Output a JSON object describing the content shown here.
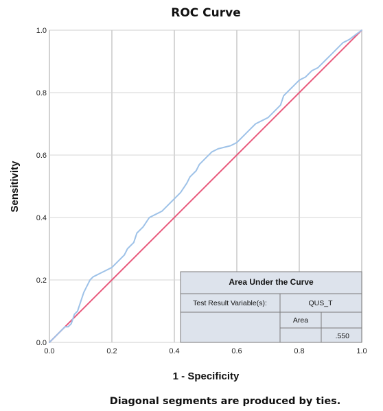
{
  "chart_data": {
    "type": "line",
    "title": "ROC Curve",
    "xlabel": "1 - Specificity",
    "ylabel": "Sensitivity",
    "xlim": [
      0,
      1
    ],
    "ylim": [
      0,
      1
    ],
    "xticks": [
      "0.0",
      "0.2",
      "0.4",
      "0.6",
      "0.8",
      "1.0"
    ],
    "yticks": [
      "0.0",
      "0.2",
      "0.4",
      "0.6",
      "0.8",
      "1.0"
    ],
    "grid": true,
    "series": [
      {
        "color": "#9ec2e8",
        "x": [
          0.0,
          0.01,
          0.02,
          0.03,
          0.04,
          0.05,
          0.06,
          0.07,
          0.08,
          0.09,
          0.1,
          0.11,
          0.12,
          0.13,
          0.14,
          0.15,
          0.16,
          0.18,
          0.2,
          0.22,
          0.24,
          0.25,
          0.27,
          0.28,
          0.3,
          0.32,
          0.34,
          0.36,
          0.38,
          0.39,
          0.4,
          0.42,
          0.44,
          0.45,
          0.47,
          0.48,
          0.5,
          0.52,
          0.54,
          0.56,
          0.58,
          0.6,
          0.62,
          0.64,
          0.66,
          0.68,
          0.7,
          0.72,
          0.74,
          0.75,
          0.76,
          0.78,
          0.8,
          0.82,
          0.84,
          0.86,
          0.88,
          0.9,
          0.92,
          0.94,
          0.96,
          0.98,
          1.0
        ],
        "y": [
          0.0,
          0.01,
          0.02,
          0.03,
          0.04,
          0.05,
          0.05,
          0.06,
          0.09,
          0.1,
          0.13,
          0.16,
          0.18,
          0.2,
          0.21,
          0.215,
          0.22,
          0.23,
          0.24,
          0.26,
          0.28,
          0.3,
          0.32,
          0.35,
          0.37,
          0.4,
          0.41,
          0.42,
          0.44,
          0.45,
          0.46,
          0.48,
          0.51,
          0.53,
          0.55,
          0.57,
          0.59,
          0.61,
          0.62,
          0.625,
          0.63,
          0.64,
          0.66,
          0.68,
          0.7,
          0.71,
          0.72,
          0.74,
          0.76,
          0.79,
          0.8,
          0.82,
          0.84,
          0.85,
          0.87,
          0.88,
          0.9,
          0.92,
          0.94,
          0.96,
          0.97,
          0.985,
          1.0
        ]
      },
      {
        "color": "#e8577a",
        "x": [
          0,
          1
        ],
        "y": [
          0,
          1
        ]
      }
    ],
    "auc_table": {
      "title": "Area Under the Curve",
      "variable_label": "Test Result Variable(s):",
      "variable_value": "QUS_T",
      "column_header": "Area",
      "area_value": ".550"
    },
    "footnote": "Diagonal segments are produced by ties."
  }
}
